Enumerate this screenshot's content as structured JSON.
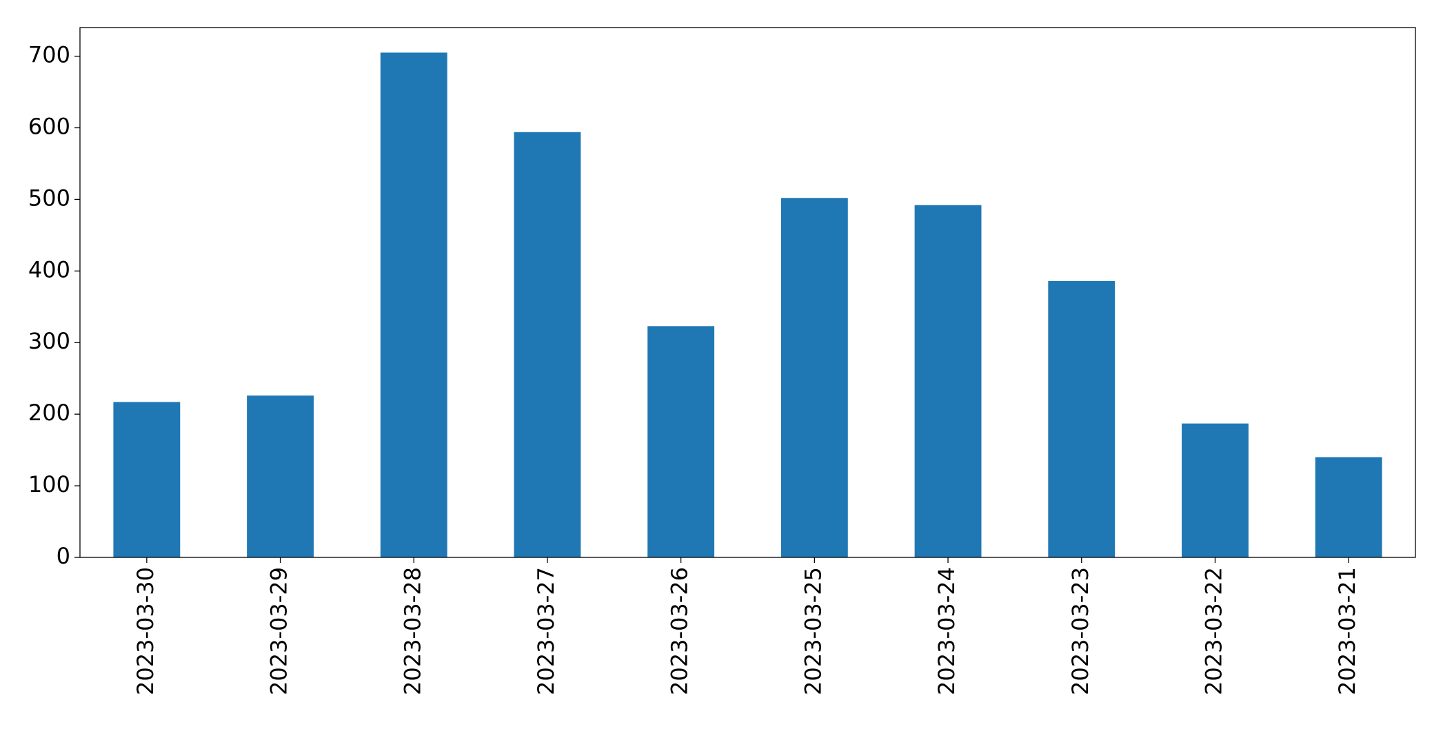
{
  "chart_data": {
    "type": "bar",
    "categories": [
      "2023-03-30",
      "2023-03-29",
      "2023-03-28",
      "2023-03-27",
      "2023-03-26",
      "2023-03-25",
      "2023-03-24",
      "2023-03-23",
      "2023-03-22",
      "2023-03-21"
    ],
    "values": [
      217,
      226,
      705,
      594,
      323,
      502,
      492,
      386,
      187,
      140
    ],
    "color": "#1f77b4",
    "ylim": [
      0,
      740
    ],
    "yticks": [
      0,
      100,
      200,
      300,
      400,
      500,
      600,
      700
    ],
    "grid": false
  }
}
